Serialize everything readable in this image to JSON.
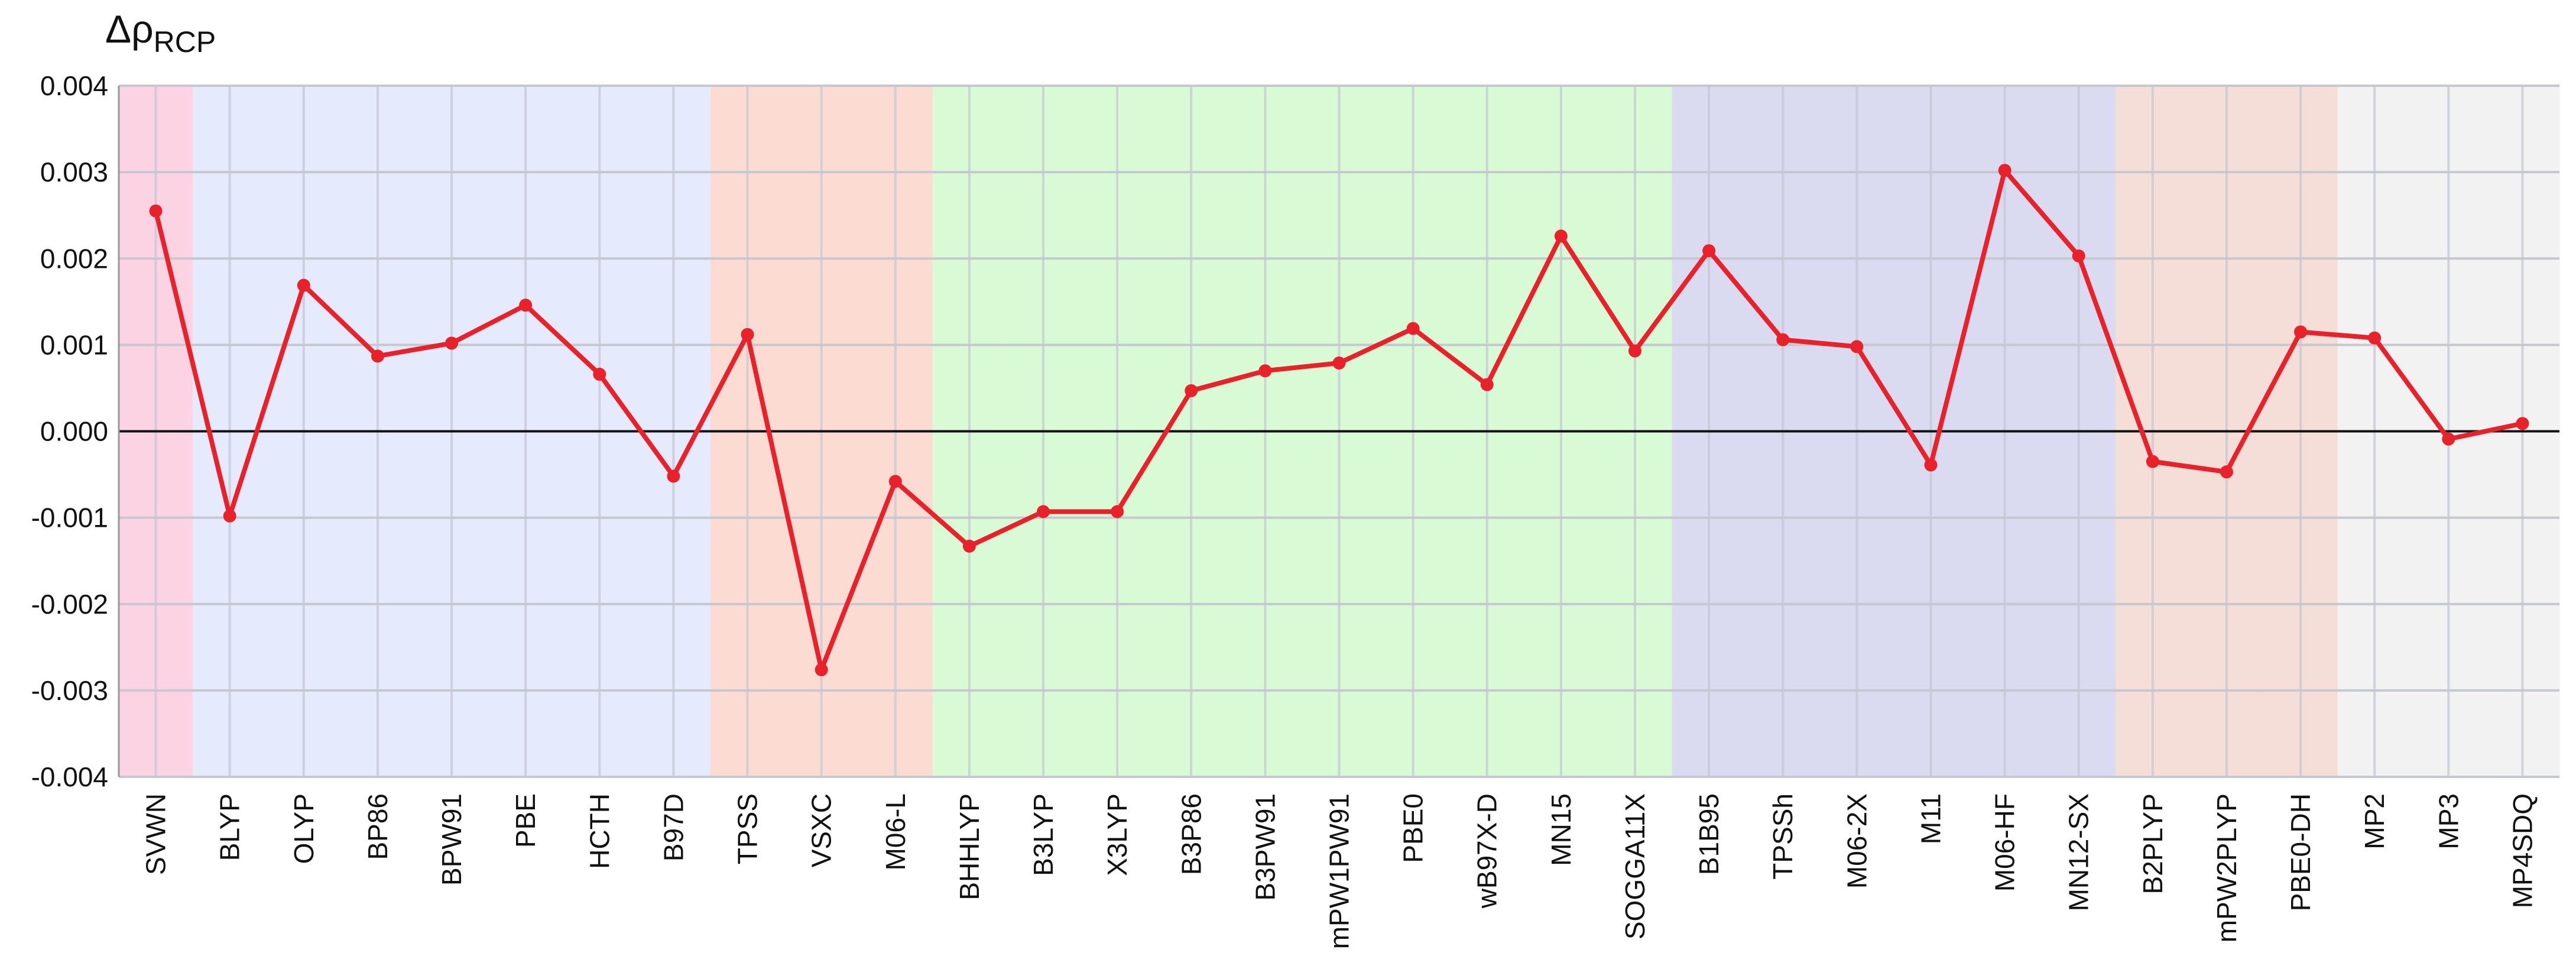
{
  "chart_data": {
    "type": "line",
    "y_label": "Δρ",
    "y_label_subscript": "RCP",
    "categories": [
      "SVWN",
      "BLYP",
      "OLYP",
      "BP86",
      "BPW91",
      "PBE",
      "HCTH",
      "B97D",
      "TPSS",
      "VSXC",
      "M06-L",
      "BHHLYP",
      "B3LYP",
      "X3LYP",
      "B3P86",
      "B3PW91",
      "mPW1PW91",
      "PBE0",
      "wB97X-D",
      "MN15",
      "SOGGA11X",
      "B1B95",
      "TPSSh",
      "M06-2X",
      "M11",
      "M06-HF",
      "MN12-SX",
      "B2PLYP",
      "mPW2PLYP",
      "PBE0-DH",
      "MP2",
      "MP3",
      "MP4SDQ"
    ],
    "values": [
      0.00255,
      -0.00098,
      0.00169,
      0.00087,
      0.00102,
      0.00146,
      0.00066,
      -0.00052,
      0.00112,
      -0.00276,
      -0.00058,
      -0.00133,
      -0.00093,
      -0.00093,
      0.00047,
      0.0007,
      0.00079,
      0.00119,
      0.00054,
      0.00226,
      0.00093,
      0.00209,
      0.00106,
      0.00098,
      -0.00039,
      0.00302,
      0.00203,
      -0.00035,
      -0.00047,
      0.00115,
      0.00108,
      -9e-05,
      9e-05
    ],
    "color": "#e8212a",
    "category_backgrounds": [
      "#fcd3e3",
      "#e5eafc",
      "#e5eafc",
      "#e5eafc",
      "#e5eafc",
      "#e5eafc",
      "#e5eafc",
      "#e5eafc",
      "#fcdcd2",
      "#fcdcd2",
      "#fcdcd2",
      "#d8fbd5",
      "#d8fbd5",
      "#d8fbd5",
      "#d8fbd5",
      "#d8fbd5",
      "#d8fbd5",
      "#d8fbd5",
      "#d8fbd5",
      "#d8fbd5",
      "#d8fbd5",
      "#dadaf0",
      "#dadaf0",
      "#dadaf0",
      "#dadaf0",
      "#dadaf0",
      "#dadaf0",
      "#f6ded8",
      "#f6ded8",
      "#f6ded8",
      "#f2f2f2",
      "#f2f2f2",
      "#f2f2f2"
    ],
    "ylim": [
      -0.004,
      0.004
    ],
    "yticks": [
      -0.004,
      -0.003,
      -0.002,
      -0.001,
      {
        "value": 0,
        "label": "0.000"
      },
      0.001,
      0.002,
      0.003,
      0.004
    ],
    "grid": true
  }
}
